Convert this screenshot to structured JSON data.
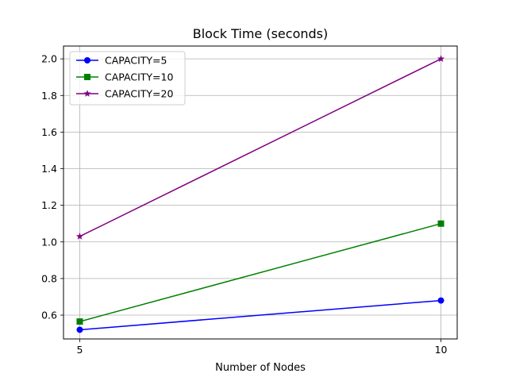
{
  "chart_data": {
    "type": "line",
    "title": "Block Time (seconds)",
    "xlabel": "Number of Nodes",
    "ylabel": "",
    "x": [
      5,
      10
    ],
    "x_ticks": [
      "5",
      "10"
    ],
    "ylim": [
      0.47,
      2.07
    ],
    "y_ticks": [
      0.6,
      0.8,
      1.0,
      1.2,
      1.4,
      1.6,
      1.8,
      2.0
    ],
    "y_tick_labels": [
      "0.6",
      "0.8",
      "1.0",
      "1.2",
      "1.4",
      "1.6",
      "1.8",
      "2.0"
    ],
    "grid": true,
    "legend_position": "top-left",
    "series": [
      {
        "name": "CAPACITY=5",
        "values": [
          0.52,
          0.68
        ],
        "color": "#0000ff",
        "marker": "circle"
      },
      {
        "name": "CAPACITY=10",
        "values": [
          0.565,
          1.1
        ],
        "color": "#008000",
        "marker": "square"
      },
      {
        "name": "CAPACITY=20",
        "values": [
          1.03,
          2.0
        ],
        "color": "#800080",
        "marker": "star"
      }
    ]
  }
}
